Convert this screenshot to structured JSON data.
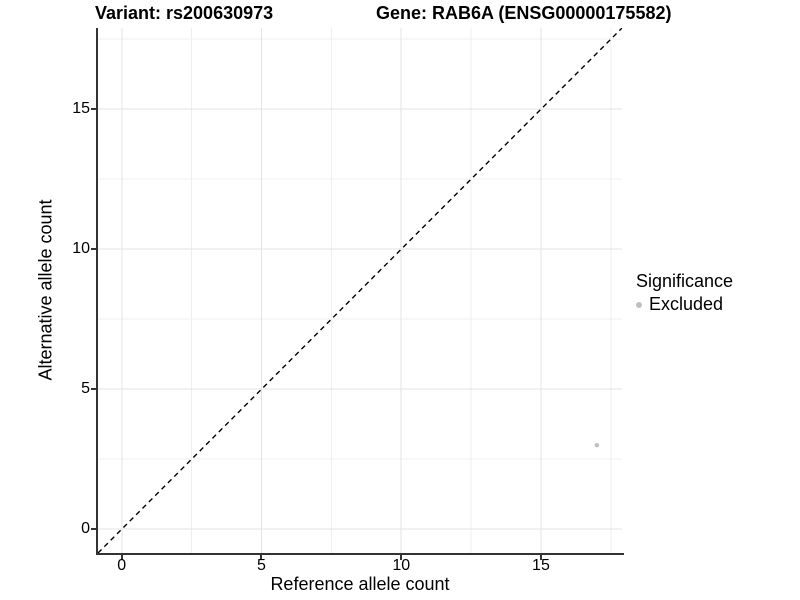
{
  "header": {
    "variant_title": "Variant: rs200630973",
    "gene_title": "Gene: RAB6A (ENSG00000175582)"
  },
  "legend": {
    "title": "Significance",
    "items": [
      {
        "label": "Excluded",
        "marker_color": "#bfbfbf"
      }
    ]
  },
  "chart_data": {
    "type": "scatter",
    "title": "Variant: rs200630973 / Gene: RAB6A (ENSG00000175582)",
    "xlabel": "Reference allele count",
    "ylabel": "Alternative allele count",
    "xlim": [
      -0.85,
      17.9
    ],
    "ylim": [
      -0.85,
      17.9
    ],
    "x_major_ticks": [
      0,
      5,
      10,
      15
    ],
    "y_major_ticks": [
      0,
      5,
      10,
      15
    ],
    "x_minor_gridlines": [
      2.5,
      7.5,
      12.5,
      17.5
    ],
    "y_minor_gridlines": [
      2.5,
      7.5,
      12.5,
      17.5
    ],
    "grid": "major+minor",
    "legend_position": "right",
    "identity_line": {
      "style": "dashed",
      "color": "#000000",
      "equation": "y = x"
    },
    "series": [
      {
        "name": "Excluded",
        "marker_color": "#bfbfbf",
        "marker_radius": 2.2,
        "points": [
          {
            "x": 17,
            "y": 3
          }
        ]
      }
    ]
  },
  "colors": {
    "background": "#ffffff",
    "axis_line": "#333333",
    "major_grid": "#e3e3e3",
    "minor_grid": "#efefef",
    "text": "#000000"
  }
}
